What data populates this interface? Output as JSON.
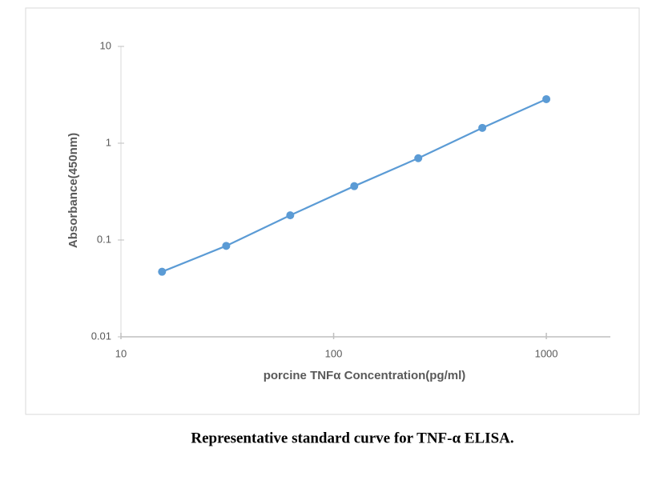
{
  "chart_data": {
    "type": "line",
    "title": "Representative standard curve for TNF-α ELISA.",
    "x_label": "porcine TNFα Concentration(pg/ml)",
    "y_label": "Absorbance(450nm)",
    "x": [
      15.6,
      31.25,
      62.5,
      125,
      250,
      500,
      1000
    ],
    "series": [
      {
        "name": "Absorbance",
        "color": "#5b9bd5",
        "values": [
          0.047,
          0.087,
          0.18,
          0.36,
          0.7,
          1.44,
          2.85
        ]
      }
    ],
    "xscale": "log",
    "yscale": "log",
    "xlim": [
      10,
      2000
    ],
    "ylim": [
      0.01,
      10
    ],
    "xticks": [
      10,
      100,
      1000
    ],
    "yticks": [
      0.01,
      0.1,
      1,
      10
    ],
    "grid": false
  }
}
